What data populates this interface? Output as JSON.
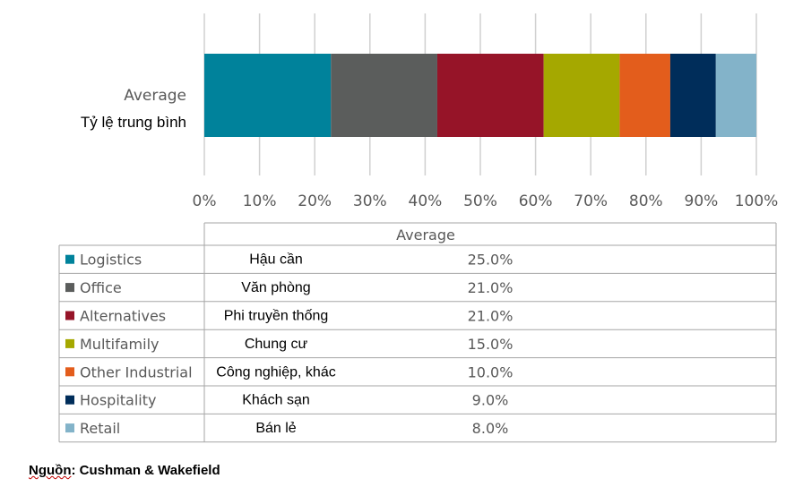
{
  "chart_data": {
    "type": "bar",
    "orientation": "horizontal",
    "stacked": "100%",
    "category": {
      "label_en": "Average",
      "label_vi": "Tỷ lệ trung bình"
    },
    "x_ticks": [
      "0%",
      "10%",
      "20%",
      "30%",
      "40%",
      "50%",
      "60%",
      "70%",
      "80%",
      "90%",
      "100%"
    ],
    "xlim": [
      0,
      100
    ],
    "grid": true,
    "series": [
      {
        "name": "Logistics",
        "name_vi": "Hậu cần",
        "value": 25.0,
        "value_label": "25.0%",
        "color": "#00829B"
      },
      {
        "name": "Office",
        "name_vi": "Văn phòng",
        "value": 21.0,
        "value_label": "21.0%",
        "color": "#5B5D5C"
      },
      {
        "name": "Alternatives",
        "name_vi": "Phi truyền thống",
        "value": 21.0,
        "value_label": "21.0%",
        "color": "#961428"
      },
      {
        "name": "Multifamily",
        "name_vi": "Chung cư",
        "value": 15.0,
        "value_label": "15.0%",
        "color": "#A5A800"
      },
      {
        "name": "Other Industrial",
        "name_vi": "Công nghiệp, khác",
        "value": 10.0,
        "value_label": "10.0%",
        "color": "#E35D1C"
      },
      {
        "name": "Hospitality",
        "name_vi": "Khách sạn",
        "value": 9.0,
        "value_label": "9.0%",
        "color": "#002D5A"
      },
      {
        "name": "Retail",
        "name_vi": "Bán lẻ",
        "value": 8.0,
        "value_label": "8.0%",
        "color": "#83B3C9"
      }
    ],
    "table": {
      "column_header": "Average"
    }
  },
  "source": {
    "prefix": "Nguồn",
    "text": ": Cushman & Wakefield"
  }
}
